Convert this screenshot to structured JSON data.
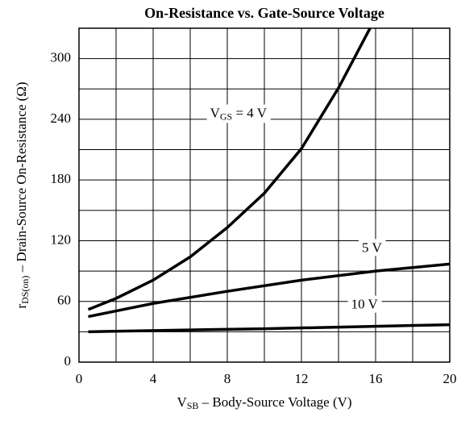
{
  "chart_data": {
    "type": "line",
    "title": "On-Resistance vs. Gate-Source Voltage",
    "x_label": [
      "V",
      "SB",
      " – Body-Source Voltage (V)"
    ],
    "y_label": [
      "r",
      "DS(on)",
      " – Drain-Source On-Resistance (Ω)"
    ],
    "xlim": [
      0,
      20
    ],
    "ylim": [
      0,
      330
    ],
    "xticks": [
      0,
      4,
      8,
      12,
      16,
      20
    ],
    "yticks": [
      0,
      60,
      120,
      180,
      240,
      300
    ],
    "xgrid": [
      0,
      2,
      4,
      6,
      8,
      10,
      12,
      14,
      16,
      18,
      20
    ],
    "ygrid": [
      0,
      30,
      60,
      90,
      120,
      150,
      180,
      210,
      240,
      270,
      300,
      330
    ],
    "grid": true,
    "series": [
      {
        "label": [
          "V",
          "GS",
          " = 4 V"
        ],
        "color": "#000000",
        "label_at": [
          8.6,
          245
        ],
        "x": [
          0.5,
          2,
          4,
          6,
          8,
          10,
          12,
          14,
          15.7
        ],
        "values": [
          52,
          63,
          81,
          104,
          133,
          167,
          211,
          271,
          330
        ]
      },
      {
        "label": [
          "5 V"
        ],
        "color": "#000000",
        "label_at": [
          15.8,
          112
        ],
        "x": [
          0.5,
          4,
          8,
          12,
          16,
          20
        ],
        "values": [
          45,
          58,
          70,
          81,
          90,
          97
        ]
      },
      {
        "label": [
          "10 V"
        ],
        "color": "#000000",
        "label_at": [
          15.4,
          56
        ],
        "x": [
          0.5,
          5,
          10,
          15,
          20
        ],
        "values": [
          30,
          31.5,
          33,
          35,
          37
        ]
      }
    ]
  }
}
